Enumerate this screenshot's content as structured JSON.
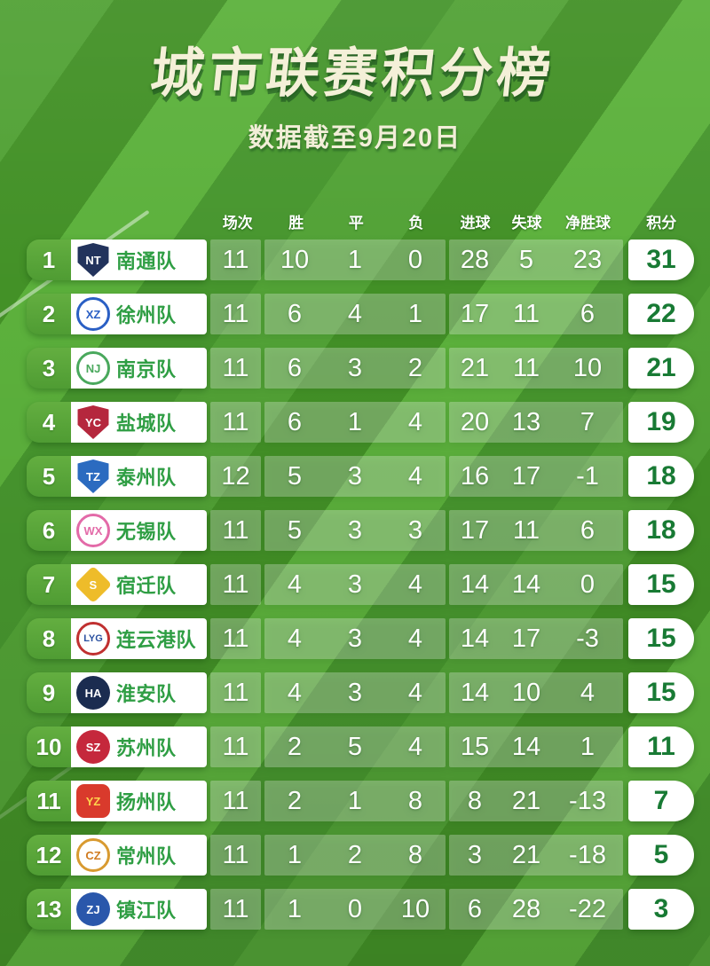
{
  "title": "城市联赛积分榜",
  "subtitle": "数据截至9月20日",
  "colors": {
    "field_green_light": "#5cb13c",
    "field_green_dark": "#439127",
    "rank_pill_green": "#57a43a",
    "team_name_green": "#2f9e44",
    "points_green": "#187a34",
    "title_cream": "#f4f0d8",
    "stat_cell_overlay": "rgba(255,255,255,0.27)"
  },
  "chart_data": {
    "type": "table",
    "title": "城市联赛积分榜",
    "subtitle": "数据截至9月20日",
    "columns": [
      "场次",
      "胜",
      "平",
      "负",
      "进球",
      "失球",
      "净胜球",
      "积分"
    ],
    "rows": [
      {
        "rank": 1,
        "team": "南通队",
        "values": [
          11,
          10,
          1,
          0,
          28,
          5,
          23,
          31
        ],
        "badge": {
          "shape": "shield",
          "bg": "#22335c",
          "fg": "#ffffff",
          "text": "NT"
        }
      },
      {
        "rank": 2,
        "team": "徐州队",
        "values": [
          11,
          6,
          4,
          1,
          17,
          11,
          6,
          22
        ],
        "badge": {
          "shape": "circle",
          "bg": "#ffffff",
          "ring": "#2a5fc4",
          "fg": "#2a5fc4",
          "text": "XZ"
        }
      },
      {
        "rank": 3,
        "team": "南京队",
        "values": [
          11,
          6,
          3,
          2,
          21,
          11,
          10,
          21
        ],
        "badge": {
          "shape": "circle",
          "bg": "#ffffff",
          "ring": "#49a85c",
          "fg": "#49a85c",
          "text": "NJ"
        }
      },
      {
        "rank": 4,
        "team": "盐城队",
        "values": [
          11,
          6,
          1,
          4,
          20,
          13,
          7,
          19
        ],
        "badge": {
          "shape": "shield",
          "bg": "#b5273d",
          "fg": "#ffffff",
          "text": "YC"
        }
      },
      {
        "rank": 5,
        "team": "泰州队",
        "values": [
          12,
          5,
          3,
          4,
          16,
          17,
          -1,
          18
        ],
        "badge": {
          "shape": "shield",
          "bg": "#2b6bc0",
          "fg": "#ffffff",
          "text": "TZ"
        }
      },
      {
        "rank": 6,
        "team": "无锡队",
        "values": [
          11,
          5,
          3,
          3,
          17,
          11,
          6,
          18
        ],
        "badge": {
          "shape": "circle",
          "bg": "#ffffff",
          "ring": "#e36aa8",
          "fg": "#e36aa8",
          "text": "WX"
        }
      },
      {
        "rank": 7,
        "team": "宿迁队",
        "values": [
          11,
          4,
          3,
          4,
          14,
          14,
          0,
          15
        ],
        "badge": {
          "shape": "diamond",
          "bg": "#eebc2a",
          "fg": "#ffffff",
          "text": "S"
        }
      },
      {
        "rank": 8,
        "team": "连云港队",
        "values": [
          11,
          4,
          3,
          4,
          14,
          17,
          -3,
          15
        ],
        "badge": {
          "shape": "circle",
          "bg": "#ffffff",
          "ring": "#c03030",
          "fg": "#2a50a0",
          "text": "LYG"
        }
      },
      {
        "rank": 9,
        "team": "淮安队",
        "values": [
          11,
          4,
          3,
          4,
          14,
          10,
          4,
          15
        ],
        "badge": {
          "shape": "circle",
          "bg": "#1b2c50",
          "fg": "#ffffff",
          "text": "HA"
        }
      },
      {
        "rank": 10,
        "team": "苏州队",
        "values": [
          11,
          2,
          5,
          4,
          15,
          14,
          1,
          11
        ],
        "badge": {
          "shape": "circle",
          "bg": "#c5283c",
          "fg": "#ffffff",
          "text": "SZ"
        }
      },
      {
        "rank": 11,
        "team": "扬州队",
        "values": [
          11,
          2,
          1,
          8,
          8,
          21,
          -13,
          7
        ],
        "badge": {
          "shape": "rounded-square",
          "bg": "#d93a2c",
          "fg": "#ffd34d",
          "text": "YZ"
        }
      },
      {
        "rank": 12,
        "team": "常州队",
        "values": [
          11,
          1,
          2,
          8,
          3,
          21,
          -18,
          5
        ],
        "badge": {
          "shape": "circle",
          "bg": "#ffffff",
          "ring": "#d89a30",
          "fg": "#d07b20",
          "text": "CZ"
        }
      },
      {
        "rank": 13,
        "team": "镇江队",
        "values": [
          11,
          1,
          0,
          10,
          6,
          28,
          -22,
          3
        ],
        "badge": {
          "shape": "circle",
          "bg": "#2a57ab",
          "fg": "#ffffff",
          "text": "ZJ"
        }
      }
    ]
  }
}
